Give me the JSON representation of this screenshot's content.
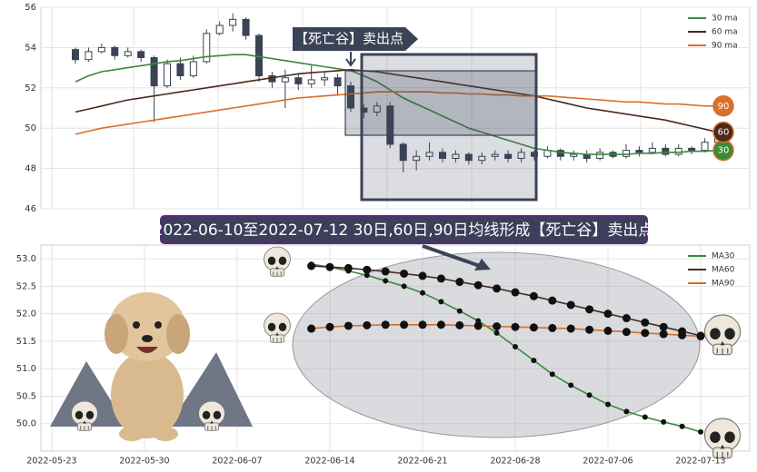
{
  "chart_data": [
    {
      "type": "candlestick",
      "annotation": "【死亡谷】卖出点",
      "ylim": [
        46,
        56
      ],
      "yticks": [
        46,
        48,
        50,
        52,
        54,
        56
      ],
      "grid": true,
      "legend": "upper right",
      "candle_colors": {
        "down": "#3b4356",
        "up": "#ffffff"
      },
      "ohlc": {
        "open": [
          53.9,
          53.4,
          53.8,
          54.0,
          53.6,
          53.8,
          53.5,
          52.1,
          53.2,
          52.6,
          53.3,
          54.7,
          55.1,
          55.4,
          54.6,
          52.6,
          52.3,
          52.5,
          52.2,
          52.4,
          52.5,
          52.1,
          51.0,
          50.8,
          51.1,
          49.2,
          48.4,
          48.6,
          48.8,
          48.5,
          48.7,
          48.4,
          48.6,
          48.7,
          48.5,
          48.8,
          48.6,
          48.9,
          48.6,
          48.7,
          48.5,
          48.8,
          48.6,
          48.9,
          48.8,
          49.0,
          48.7,
          49.0,
          48.9,
          49.3
        ],
        "high": [
          54.0,
          54.0,
          54.2,
          54.1,
          54.0,
          53.9,
          53.6,
          53.4,
          53.5,
          53.6,
          54.9,
          55.3,
          55.7,
          55.5,
          54.7,
          52.8,
          52.9,
          52.7,
          53.1,
          52.8,
          52.7,
          52.3,
          51.2,
          51.3,
          51.3,
          49.3,
          48.9,
          49.3,
          49.0,
          48.9,
          48.8,
          48.8,
          48.9,
          48.9,
          49.0,
          48.9,
          49.1,
          49.0,
          48.9,
          48.9,
          49.0,
          48.9,
          49.2,
          49.1,
          49.3,
          49.2,
          49.2,
          49.1,
          49.5,
          50.1
        ],
        "low": [
          53.2,
          53.3,
          53.7,
          53.4,
          53.5,
          53.3,
          50.3,
          52.0,
          52.4,
          52.5,
          53.2,
          54.6,
          54.8,
          54.4,
          52.3,
          52.0,
          51.0,
          51.9,
          52.0,
          52.1,
          51.6,
          50.8,
          50.5,
          50.6,
          49.0,
          47.8,
          47.9,
          48.4,
          48.3,
          48.3,
          48.2,
          48.2,
          48.4,
          48.3,
          48.3,
          48.4,
          48.5,
          48.4,
          48.4,
          48.3,
          48.4,
          48.5,
          48.5,
          48.6,
          48.7,
          48.6,
          48.6,
          48.7,
          48.8,
          49.2
        ],
        "close": [
          53.4,
          53.8,
          54.0,
          53.6,
          53.8,
          53.5,
          52.1,
          53.2,
          52.6,
          53.3,
          54.7,
          55.1,
          55.4,
          54.6,
          52.6,
          52.3,
          52.5,
          52.2,
          52.4,
          52.5,
          52.1,
          51.0,
          50.8,
          51.1,
          49.2,
          48.4,
          48.6,
          48.8,
          48.5,
          48.7,
          48.4,
          48.6,
          48.7,
          48.5,
          48.8,
          48.6,
          48.9,
          48.6,
          48.7,
          48.5,
          48.8,
          48.6,
          48.9,
          48.8,
          49.0,
          48.7,
          49.0,
          48.9,
          49.3,
          49.7
        ]
      },
      "series": [
        {
          "name": "30 ma",
          "badge": "30",
          "color": "#3a8a3a",
          "values": [
            52.3,
            52.6,
            52.8,
            52.9,
            53.0,
            53.1,
            53.2,
            53.3,
            53.35,
            53.45,
            53.55,
            53.6,
            53.65,
            53.65,
            53.55,
            53.45,
            53.35,
            53.25,
            53.15,
            53.05,
            52.95,
            52.85,
            52.6,
            52.3,
            51.9,
            51.5,
            51.2,
            50.9,
            50.6,
            50.3,
            50.0,
            49.8,
            49.6,
            49.4,
            49.2,
            49.0,
            48.9,
            48.8,
            48.75,
            48.7,
            48.7,
            48.7,
            48.7,
            48.75,
            48.75,
            48.8,
            48.8,
            48.85,
            48.85,
            48.9
          ]
        },
        {
          "name": "60 ma",
          "badge": "60",
          "color": "#4a2a1a",
          "values": [
            50.8,
            50.95,
            51.1,
            51.25,
            51.4,
            51.5,
            51.6,
            51.7,
            51.8,
            51.9,
            52.0,
            52.1,
            52.2,
            52.3,
            52.4,
            52.5,
            52.6,
            52.7,
            52.75,
            52.8,
            52.85,
            52.9,
            52.85,
            52.8,
            52.7,
            52.6,
            52.5,
            52.4,
            52.3,
            52.2,
            52.1,
            52.0,
            51.9,
            51.8,
            51.7,
            51.6,
            51.45,
            51.3,
            51.15,
            51.0,
            50.9,
            50.8,
            50.7,
            50.6,
            50.5,
            50.4,
            50.25,
            50.1,
            49.95,
            49.8
          ]
        },
        {
          "name": "90 ma",
          "badge": "90",
          "color": "#d9702a",
          "values": [
            49.7,
            49.85,
            50.0,
            50.1,
            50.2,
            50.3,
            50.4,
            50.5,
            50.6,
            50.7,
            50.8,
            50.9,
            51.0,
            51.1,
            51.2,
            51.3,
            51.4,
            51.5,
            51.55,
            51.6,
            51.65,
            51.7,
            51.75,
            51.8,
            51.8,
            51.8,
            51.8,
            51.8,
            51.75,
            51.75,
            51.7,
            51.7,
            51.65,
            51.65,
            51.6,
            51.6,
            51.6,
            51.55,
            51.5,
            51.45,
            51.4,
            51.35,
            51.3,
            51.3,
            51.25,
            51.2,
            51.2,
            51.15,
            51.1,
            51.1
          ]
        }
      ]
    },
    {
      "type": "line",
      "title": "2022-06-10至2022-07-12 30日,60日,90日均线形成【死亡谷】卖出点",
      "categories": [
        "2022-05-23",
        null,
        null,
        null,
        null,
        "2022-05-30",
        null,
        null,
        null,
        null,
        "2022-06-07",
        null,
        null,
        null,
        null,
        "2022-06-14",
        null,
        null,
        null,
        null,
        "2022-06-21",
        null,
        null,
        null,
        null,
        "2022-06-28",
        null,
        null,
        null,
        null,
        "2022-07-06",
        null,
        null,
        null,
        null,
        "2022-07-13"
      ],
      "ylim": [
        49.5,
        53.25
      ],
      "yticks": [
        {
          "value": 50,
          "label": "50.0"
        },
        50.5,
        {
          "value": 51,
          "label": "51.0"
        },
        51.5,
        {
          "value": 52,
          "label": "52.0"
        },
        52.5,
        {
          "value": 53,
          "label": "53.0"
        }
      ],
      "grid": true,
      "legend": "upper right",
      "series": [
        {
          "name": "MA30",
          "color": "#3a8a3a",
          "values": [
            null,
            null,
            null,
            null,
            null,
            null,
            null,
            null,
            null,
            null,
            null,
            null,
            null,
            null,
            52.9,
            52.85,
            52.78,
            52.7,
            52.6,
            52.5,
            52.38,
            52.22,
            52.05,
            51.87,
            51.65,
            51.4,
            51.15,
            50.9,
            50.7,
            50.52,
            50.35,
            50.22,
            50.12,
            50.03,
            49.95,
            49.85
          ]
        },
        {
          "name": "MA60",
          "color": "#4a2a1a",
          "values": [
            null,
            null,
            null,
            null,
            null,
            null,
            null,
            null,
            null,
            null,
            null,
            null,
            null,
            null,
            52.87,
            52.85,
            52.83,
            52.8,
            52.77,
            52.73,
            52.69,
            52.64,
            52.58,
            52.52,
            52.46,
            52.39,
            52.32,
            52.24,
            52.16,
            52.08,
            52.0,
            51.92,
            51.84,
            51.76,
            51.68,
            51.6
          ]
        },
        {
          "name": "MA90",
          "color": "#d9702a",
          "values": [
            null,
            null,
            null,
            null,
            null,
            null,
            null,
            null,
            null,
            null,
            null,
            null,
            null,
            null,
            51.73,
            51.76,
            51.78,
            51.79,
            51.8,
            51.8,
            51.8,
            51.8,
            51.79,
            51.78,
            51.77,
            51.76,
            51.75,
            51.74,
            51.73,
            51.71,
            51.69,
            51.67,
            51.65,
            51.63,
            51.61,
            51.59
          ]
        }
      ]
    }
  ]
}
